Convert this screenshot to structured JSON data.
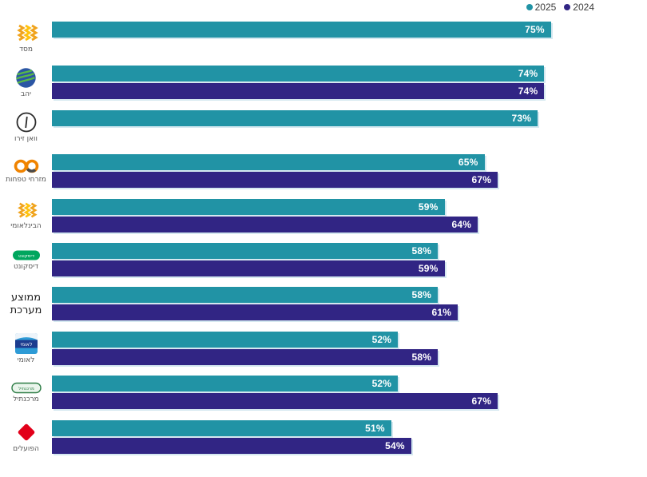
{
  "colors": {
    "series_2025": "#2193A5",
    "series_2024": "#312584",
    "bar_label_text": "#FFFFFF"
  },
  "legend": {
    "items": [
      {
        "label": "2025",
        "color": "#2193A5"
      },
      {
        "label": "2024",
        "color": "#312584"
      }
    ]
  },
  "logos": {
    "leumi_text": "לאומי",
    "discount_text": "דיסקונט",
    "mercantile_text": "מרכנתיל"
  },
  "chart_data": {
    "type": "bar",
    "orientation": "horizontal",
    "title": "",
    "legend_position": "top-right",
    "axes_hidden": true,
    "value_suffix": "%",
    "xlim": [
      0,
      100
    ],
    "categories": [
      "מסד",
      "יהב",
      "וואן זירו",
      "מזרחי טפחות",
      "הבינלאומי",
      "דיסקונט",
      "ממוצע מערכת",
      "לאומי",
      "מרכנתיל",
      "הפועלים"
    ],
    "series": [
      {
        "name": "2025",
        "color": "#2193A5",
        "values": [
          75,
          74,
          73,
          65,
          59,
          58,
          58,
          52,
          52,
          51
        ]
      },
      {
        "name": "2024",
        "color": "#312584",
        "values": [
          null,
          74,
          null,
          67,
          64,
          59,
          61,
          58,
          67,
          54
        ]
      }
    ]
  },
  "rows": [
    {
      "label": "מסד",
      "logo": "massad",
      "emphasis": false,
      "bars": [
        {
          "series": "2025",
          "value": 75,
          "text": "75%"
        }
      ]
    },
    {
      "label": "יהב",
      "logo": "yahav",
      "emphasis": false,
      "bars": [
        {
          "series": "2025",
          "value": 74,
          "text": "74%"
        },
        {
          "series": "2024",
          "value": 74,
          "text": "74%"
        }
      ]
    },
    {
      "label": "וואן זירו",
      "logo": "onezero",
      "emphasis": false,
      "bars": [
        {
          "series": "2025",
          "value": 73,
          "text": "73%"
        }
      ]
    },
    {
      "label": "מזרחי טפחות",
      "logo": "mizrahi",
      "emphasis": false,
      "bars": [
        {
          "series": "2025",
          "value": 65,
          "text": "65%"
        },
        {
          "series": "2024",
          "value": 67,
          "text": "67%"
        }
      ]
    },
    {
      "label": "הבינלאומי",
      "logo": "international",
      "emphasis": false,
      "bars": [
        {
          "series": "2025",
          "value": 59,
          "text": "59%"
        },
        {
          "series": "2024",
          "value": 64,
          "text": "64%"
        }
      ]
    },
    {
      "label": "דיסקונט",
      "logo": "discount",
      "emphasis": false,
      "bars": [
        {
          "series": "2025",
          "value": 58,
          "text": "58%"
        },
        {
          "series": "2024",
          "value": 59,
          "text": "59%"
        }
      ]
    },
    {
      "label": "ממוצע מערכת",
      "logo": null,
      "emphasis": true,
      "bars": [
        {
          "series": "2025",
          "value": 58,
          "text": "58%"
        },
        {
          "series": "2024",
          "value": 61,
          "text": "61%"
        }
      ]
    },
    {
      "label": "לאומי",
      "logo": "leumi",
      "emphasis": false,
      "bars": [
        {
          "series": "2025",
          "value": 52,
          "text": "52%"
        },
        {
          "series": "2024",
          "value": 58,
          "text": "58%"
        }
      ]
    },
    {
      "label": "מרכנתיל",
      "logo": "mercantile",
      "emphasis": false,
      "bars": [
        {
          "series": "2025",
          "value": 52,
          "text": "52%"
        },
        {
          "series": "2024",
          "value": 67,
          "text": "67%"
        }
      ]
    },
    {
      "label": "הפועלים",
      "logo": "hapoalim",
      "emphasis": false,
      "bars": [
        {
          "series": "2025",
          "value": 51,
          "text": "51%"
        },
        {
          "series": "2024",
          "value": 54,
          "text": "54%"
        }
      ]
    }
  ]
}
